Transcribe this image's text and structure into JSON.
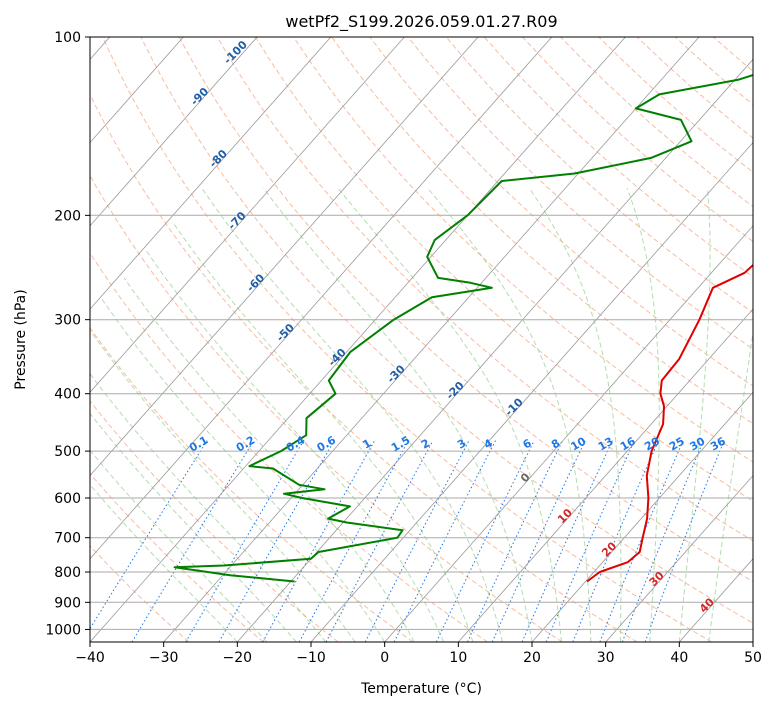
{
  "chart_data": {
    "type": "line",
    "title": "wetPf2_S199.2026.059.01.27.R09",
    "xlabel": "Temperature (°C)",
    "ylabel": "Pressure (hPa)",
    "xlim": [
      -40,
      50
    ],
    "ylim": [
      1050,
      100
    ],
    "y_scale": "log",
    "grid": true,
    "x_ticks": [
      -40,
      -30,
      -20,
      -10,
      0,
      10,
      20,
      30,
      40,
      50
    ],
    "y_ticks": [
      100,
      200,
      300,
      400,
      500,
      600,
      700,
      800,
      900,
      1000
    ],
    "isotherms_deg_c": [
      -100,
      -90,
      -80,
      -70,
      -60,
      -50,
      -40,
      -30,
      -20,
      -10,
      0,
      10,
      20,
      30,
      40
    ],
    "mixing_ratio_labels": [
      "0.1",
      "0.2",
      "0.4",
      "0.6",
      "1",
      "1.5",
      "2",
      "3",
      "4",
      "6",
      "8",
      "10",
      "13",
      "16",
      "20",
      "25",
      "30",
      "36"
    ],
    "series": [
      {
        "color": "#e00000",
        "points": [
          {
            "p": 830,
            "t": 20.2
          },
          {
            "p": 800,
            "t": 20.8
          },
          {
            "p": 770,
            "t": 23.4
          },
          {
            "p": 740,
            "t": 23.8
          },
          {
            "p": 700,
            "t": 22.5
          },
          {
            "p": 650,
            "t": 20.8
          },
          {
            "p": 600,
            "t": 18.5
          },
          {
            "p": 550,
            "t": 15.6
          },
          {
            "p": 500,
            "t": 13.3
          },
          {
            "p": 450,
            "t": 11.6
          },
          {
            "p": 420,
            "t": 9.6
          },
          {
            "p": 400,
            "t": 7.6
          },
          {
            "p": 380,
            "t": 6.2
          },
          {
            "p": 350,
            "t": 6.0
          },
          {
            "p": 300,
            "t": 4.0
          },
          {
            "p": 265,
            "t": 2.0
          },
          {
            "p": 250,
            "t": 4.5
          },
          {
            "p": 220,
            "t": 5.4
          },
          {
            "p": 200,
            "t": 5.0
          },
          {
            "p": 170,
            "t": 4.7
          },
          {
            "p": 150,
            "t": 5.4
          },
          {
            "p": 130,
            "t": 7.5
          },
          {
            "p": 115,
            "t": 6.3
          },
          {
            "p": 100,
            "t": 7.8
          }
        ]
      },
      {
        "color": "#008000",
        "points": [
          {
            "p": 830,
            "t": -19.5
          },
          {
            "p": 810,
            "t": -29.0
          },
          {
            "p": 785,
            "t": -37.5
          },
          {
            "p": 780,
            "t": -31.0
          },
          {
            "p": 760,
            "t": -20.0
          },
          {
            "p": 740,
            "t": -19.8
          },
          {
            "p": 700,
            "t": -10.8
          },
          {
            "p": 680,
            "t": -11.0
          },
          {
            "p": 660,
            "t": -19.5
          },
          {
            "p": 650,
            "t": -22.5
          },
          {
            "p": 620,
            "t": -21.0
          },
          {
            "p": 600,
            "t": -28.5
          },
          {
            "p": 590,
            "t": -31.5
          },
          {
            "p": 580,
            "t": -26.5
          },
          {
            "p": 570,
            "t": -30.5
          },
          {
            "p": 535,
            "t": -36.0
          },
          {
            "p": 530,
            "t": -39.5
          },
          {
            "p": 500,
            "t": -37.0
          },
          {
            "p": 470,
            "t": -35.5
          },
          {
            "p": 440,
            "t": -37.5
          },
          {
            "p": 400,
            "t": -36.5
          },
          {
            "p": 380,
            "t": -39.0
          },
          {
            "p": 340,
            "t": -39.5
          },
          {
            "p": 300,
            "t": -37.5
          },
          {
            "p": 275,
            "t": -35.0
          },
          {
            "p": 265,
            "t": -28.0
          },
          {
            "p": 260,
            "t": -31.5
          },
          {
            "p": 255,
            "t": -36.5
          },
          {
            "p": 235,
            "t": -40.5
          },
          {
            "p": 220,
            "t": -41.5
          },
          {
            "p": 200,
            "t": -40.0
          },
          {
            "p": 175,
            "t": -39.5
          },
          {
            "p": 170,
            "t": -30.5
          },
          {
            "p": 160,
            "t": -22.0
          },
          {
            "p": 150,
            "t": -18.5
          },
          {
            "p": 138,
            "t": -22.5
          },
          {
            "p": 132,
            "t": -30.0
          },
          {
            "p": 125,
            "t": -28.5
          },
          {
            "p": 118,
            "t": -19.5
          },
          {
            "p": 110,
            "t": -14.0
          },
          {
            "p": 100,
            "t": -11.5
          }
        ]
      }
    ]
  }
}
